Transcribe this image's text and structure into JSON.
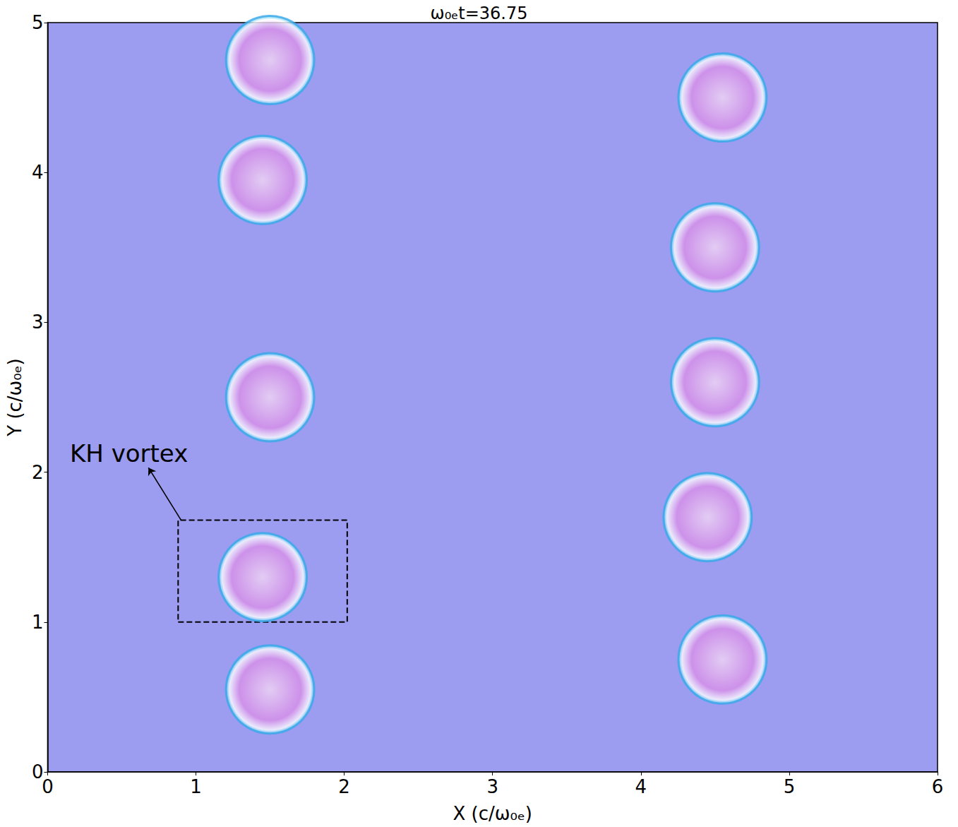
{
  "chart_data": {
    "type": "scatter",
    "title": "ω₀ₑt=36.75",
    "x_label": "X (c/ω₀ₑ)",
    "y_label": "Y (c/ω₀ₑ)",
    "x": [
      1.5,
      1.45,
      1.5,
      1.45,
      1.5,
      4.55,
      4.5,
      4.5,
      4.45,
      4.55
    ],
    "values": [
      4.75,
      3.95,
      2.5,
      1.3,
      0.55,
      4.5,
      3.5,
      2.6,
      1.7,
      0.75
    ],
    "color": "#d98ee8",
    "marker": "circle",
    "xlim": [
      0,
      6
    ],
    "ylim": [
      0,
      5
    ],
    "xticks": [
      0,
      1,
      2,
      3,
      4,
      5,
      6
    ],
    "yticks": [
      0,
      1,
      2,
      3,
      4,
      5
    ],
    "grid": false,
    "annotations": [
      {
        "text": "KH vortex",
        "x": 0.15,
        "y": 2.1,
        "arrow": {
          "from": [
            0.9,
            1.68
          ],
          "to": [
            0.68,
            2.03
          ]
        },
        "box": {
          "x": [
            0.88,
            2.02
          ],
          "y": [
            1.0,
            1.68
          ]
        }
      }
    ]
  }
}
